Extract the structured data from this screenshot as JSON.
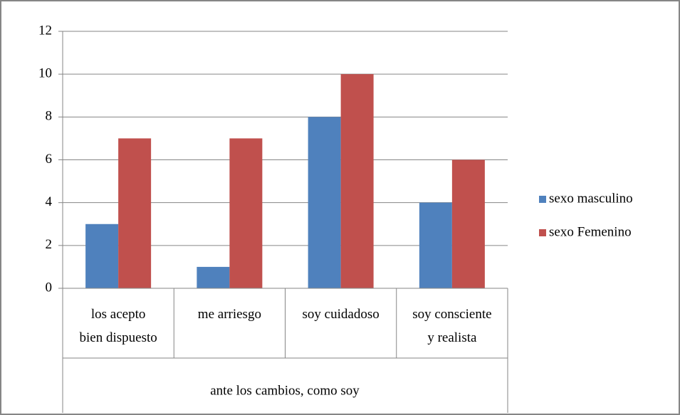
{
  "chart_data": {
    "type": "bar",
    "categories": [
      [
        "los acepto",
        "bien dispuesto"
      ],
      [
        "me arriesgo"
      ],
      [
        "soy cuidadoso"
      ],
      [
        "soy consciente",
        "y realista"
      ]
    ],
    "xlabel": "ante los cambios, como soy",
    "series": [
      {
        "name": "sexo masculino",
        "color": "#4f81bd",
        "values": [
          3,
          1,
          8,
          4
        ]
      },
      {
        "name": "sexo Femenino",
        "color": "#c0504d",
        "values": [
          7,
          7,
          10,
          6
        ]
      }
    ],
    "ylim": [
      0,
      12
    ],
    "yticks": [
      0,
      2,
      4,
      6,
      8,
      10,
      12
    ],
    "grid": true,
    "legend": "right"
  }
}
